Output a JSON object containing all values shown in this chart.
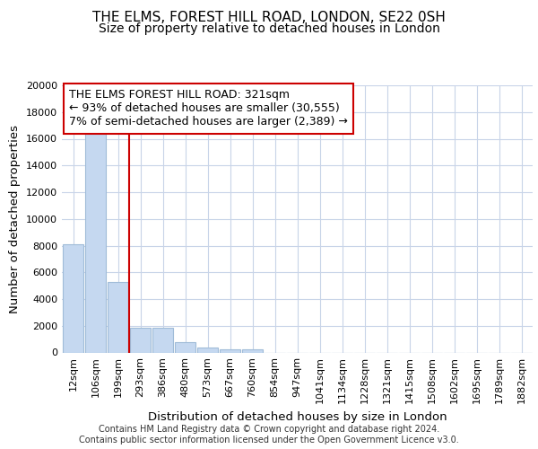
{
  "title": "THE ELMS, FOREST HILL ROAD, LONDON, SE22 0SH",
  "subtitle": "Size of property relative to detached houses in London",
  "xlabel": "Distribution of detached houses by size in London",
  "ylabel": "Number of detached properties",
  "bar_labels": [
    "12sqm",
    "106sqm",
    "199sqm",
    "293sqm",
    "386sqm",
    "480sqm",
    "573sqm",
    "667sqm",
    "760sqm",
    "854sqm",
    "947sqm",
    "1041sqm",
    "1134sqm",
    "1228sqm",
    "1321sqm",
    "1415sqm",
    "1508sqm",
    "1602sqm",
    "1695sqm",
    "1789sqm",
    "1882sqm"
  ],
  "bar_values": [
    8100,
    16500,
    5300,
    1850,
    1850,
    750,
    350,
    250,
    250,
    0,
    0,
    0,
    0,
    0,
    0,
    0,
    0,
    0,
    0,
    0,
    0
  ],
  "bar_color": "#c5d8f0",
  "bar_edge_color": "#a0bcd8",
  "grid_color": "#c8d4e8",
  "background_color": "#ffffff",
  "fig_background_color": "#ffffff",
  "ylim": [
    0,
    20000
  ],
  "yticks": [
    0,
    2000,
    4000,
    6000,
    8000,
    10000,
    12000,
    14000,
    16000,
    18000,
    20000
  ],
  "red_line_x": 2.5,
  "annotation_line1": "THE ELMS FOREST HILL ROAD: 321sqm",
  "annotation_line2": "← 93% of detached houses are smaller (30,555)",
  "annotation_line3": "7% of semi-detached houses are larger (2,389) →",
  "annotation_box_color": "#ffffff",
  "annotation_border_color": "#cc0000",
  "red_line_color": "#cc0000",
  "footer": "Contains HM Land Registry data © Crown copyright and database right 2024.\nContains public sector information licensed under the Open Government Licence v3.0.",
  "title_fontsize": 11,
  "subtitle_fontsize": 10,
  "axis_label_fontsize": 9.5,
  "tick_fontsize": 8,
  "annotation_fontsize": 9
}
